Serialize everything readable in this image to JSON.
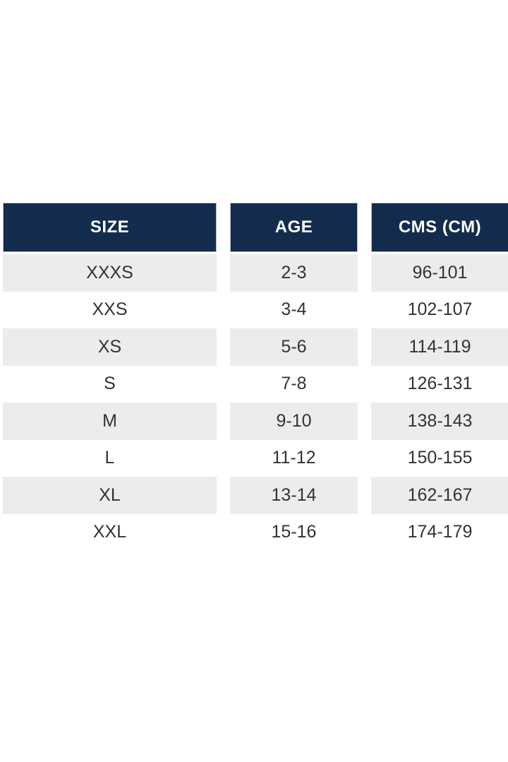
{
  "table": {
    "columns": [
      {
        "key": "size",
        "label": "SIZE"
      },
      {
        "key": "age",
        "label": "AGE"
      },
      {
        "key": "cms",
        "label": "CMS (CM)"
      }
    ],
    "rows": [
      {
        "size": "XXXS",
        "age": "2-3",
        "cms": "96-101"
      },
      {
        "size": "XXS",
        "age": "3-4",
        "cms": "102-107"
      },
      {
        "size": "XS",
        "age": "5-6",
        "cms": "114-119"
      },
      {
        "size": "S",
        "age": "7-8",
        "cms": "126-131"
      },
      {
        "size": "M",
        "age": "9-10",
        "cms": "138-143"
      },
      {
        "size": "L",
        "age": "11-12",
        "cms": "150-155"
      },
      {
        "size": "XL",
        "age": "13-14",
        "cms": "162-167"
      },
      {
        "size": "XXL",
        "age": "15-16",
        "cms": "174-179"
      }
    ]
  },
  "colors": {
    "header_bg": "#132c4d",
    "header_text": "#ffffff",
    "header_border": "#b9c1cd",
    "row_alt_bg": "#ececea",
    "row_bg": "#ffffff",
    "cell_text": "#333333",
    "page_bg": "#ffffff"
  }
}
